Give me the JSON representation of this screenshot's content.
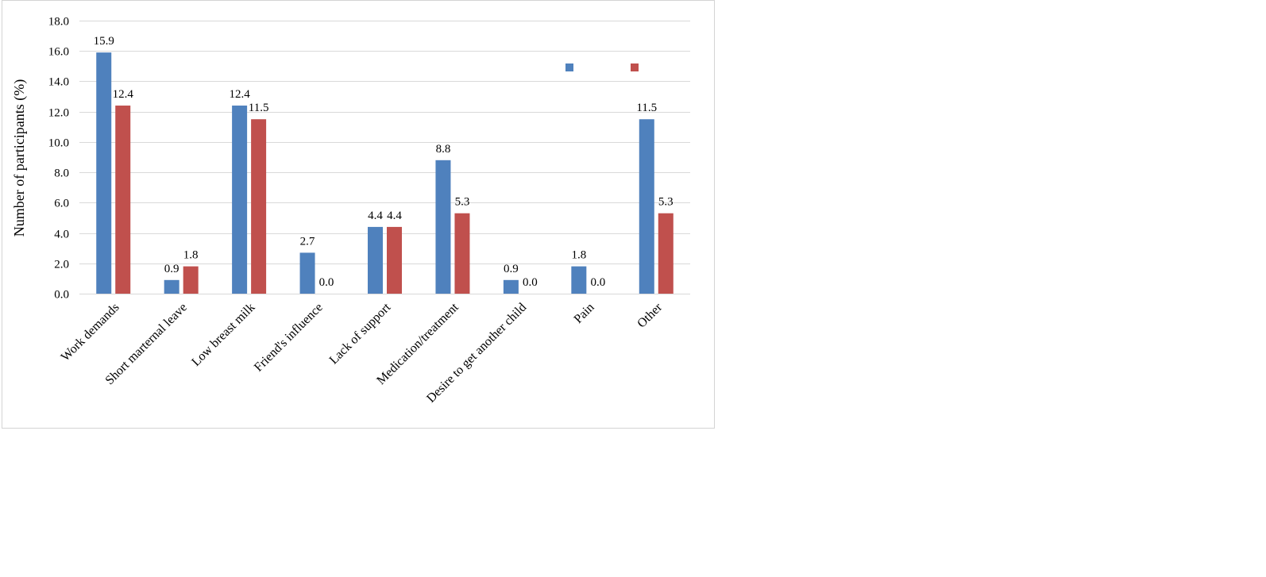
{
  "chart_data": {
    "type": "bar",
    "title": "",
    "xlabel": "",
    "ylabel": "Number of participants (%)",
    "ylim": [
      0,
      18
    ],
    "yticks": [
      "0.0",
      "2.0",
      "4.0",
      "6.0",
      "8.0",
      "10.0",
      "12.0",
      "14.0",
      "16.0",
      "18.0"
    ],
    "grid": true,
    "legend_position": "top-right",
    "categories": [
      "Work demands",
      "Short marternal leave",
      "Low breast milk",
      "Friend's influence",
      "Lack of support",
      "Medication/treatment",
      "Desire to get another child",
      "Pain",
      "Other"
    ],
    "series": [
      {
        "color": "#4f81bd",
        "values": [
          15.9,
          0.9,
          12.4,
          2.7,
          4.4,
          8.8,
          0.9,
          1.8,
          11.5
        ],
        "labels": [
          "15.9",
          "0.9",
          "12.4",
          "2.7",
          "4.4",
          "8.8",
          "0.9",
          "1.8",
          "11.5"
        ]
      },
      {
        "color": "#c0504d",
        "values": [
          12.4,
          1.8,
          11.5,
          0.0,
          4.4,
          5.3,
          0.0,
          0.0,
          5.3
        ],
        "labels": [
          "12.4",
          "1.8",
          "11.5",
          "0.0",
          "4.4",
          "5.3",
          "0.0",
          "0.0",
          "5.3"
        ]
      }
    ]
  }
}
